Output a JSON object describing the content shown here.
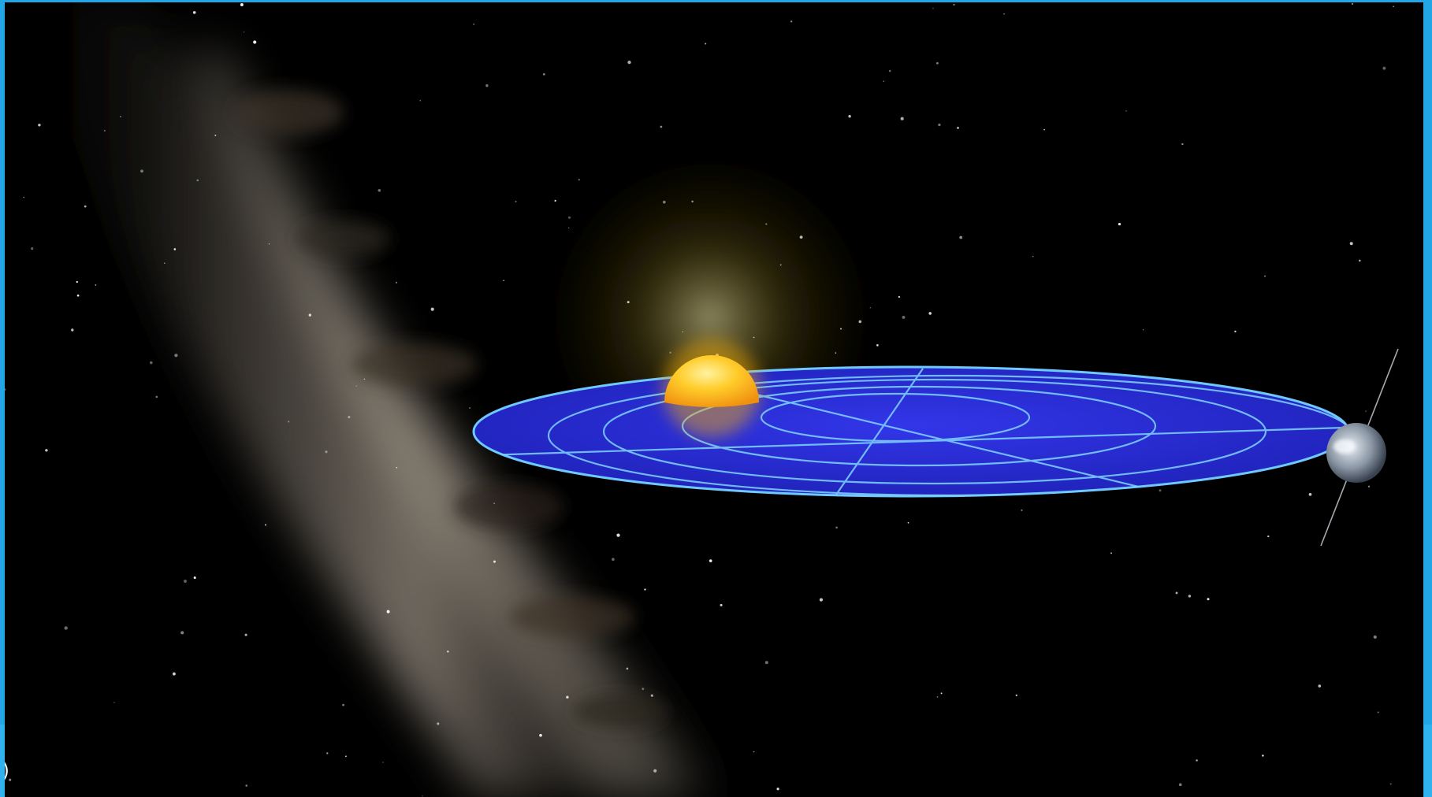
{
  "scene": {
    "kind": "video-frame",
    "subject": "ecliptic-plane-visualization",
    "background_color": "#000000",
    "frame_border_color": "#22a6e6",
    "disc_color": "#2a2bd6",
    "grid_line_color": "#7fd4ff",
    "sun_color": "#ffc020",
    "milky_way_color": "#8a8276"
  },
  "overlay": {
    "corner_glyph": ")"
  }
}
